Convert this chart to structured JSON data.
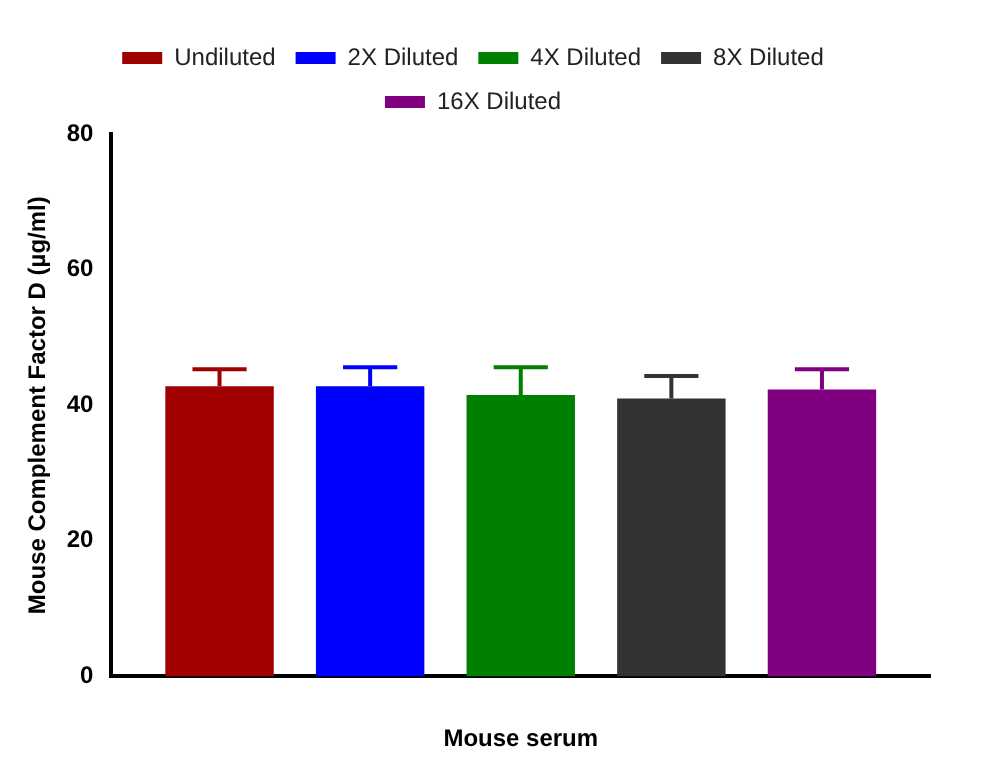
{
  "chart_data": {
    "type": "bar",
    "xlabel": "Mouse serum",
    "ylabel": "Mouse Complement Factor D (µg/ml)",
    "categories": [
      null
    ],
    "ylim": [
      0,
      80
    ],
    "yticks": [
      0,
      20,
      40,
      60,
      80
    ],
    "grid": false,
    "legend": "top",
    "series": [
      {
        "name": "Undiluted",
        "color": "#a00000",
        "values": [
          42.8
        ],
        "errors": [
          [
            42.8,
            45.3
          ]
        ]
      },
      {
        "name": "2X Diluted",
        "color": "#0000ff",
        "values": [
          42.8
        ],
        "errors": [
          [
            42.8,
            45.6
          ]
        ]
      },
      {
        "name": "4X Diluted",
        "color": "#008000",
        "values": [
          41.5
        ],
        "errors": [
          [
            41.5,
            45.6
          ]
        ]
      },
      {
        "name": "8X Diluted",
        "color": "#333333",
        "values": [
          41.0
        ],
        "errors": [
          [
            41.0,
            44.3
          ]
        ]
      },
      {
        "name": "16X Diluted",
        "color": "#800080",
        "values": [
          42.3
        ],
        "errors": [
          [
            42.3,
            45.3
          ]
        ]
      }
    ]
  }
}
